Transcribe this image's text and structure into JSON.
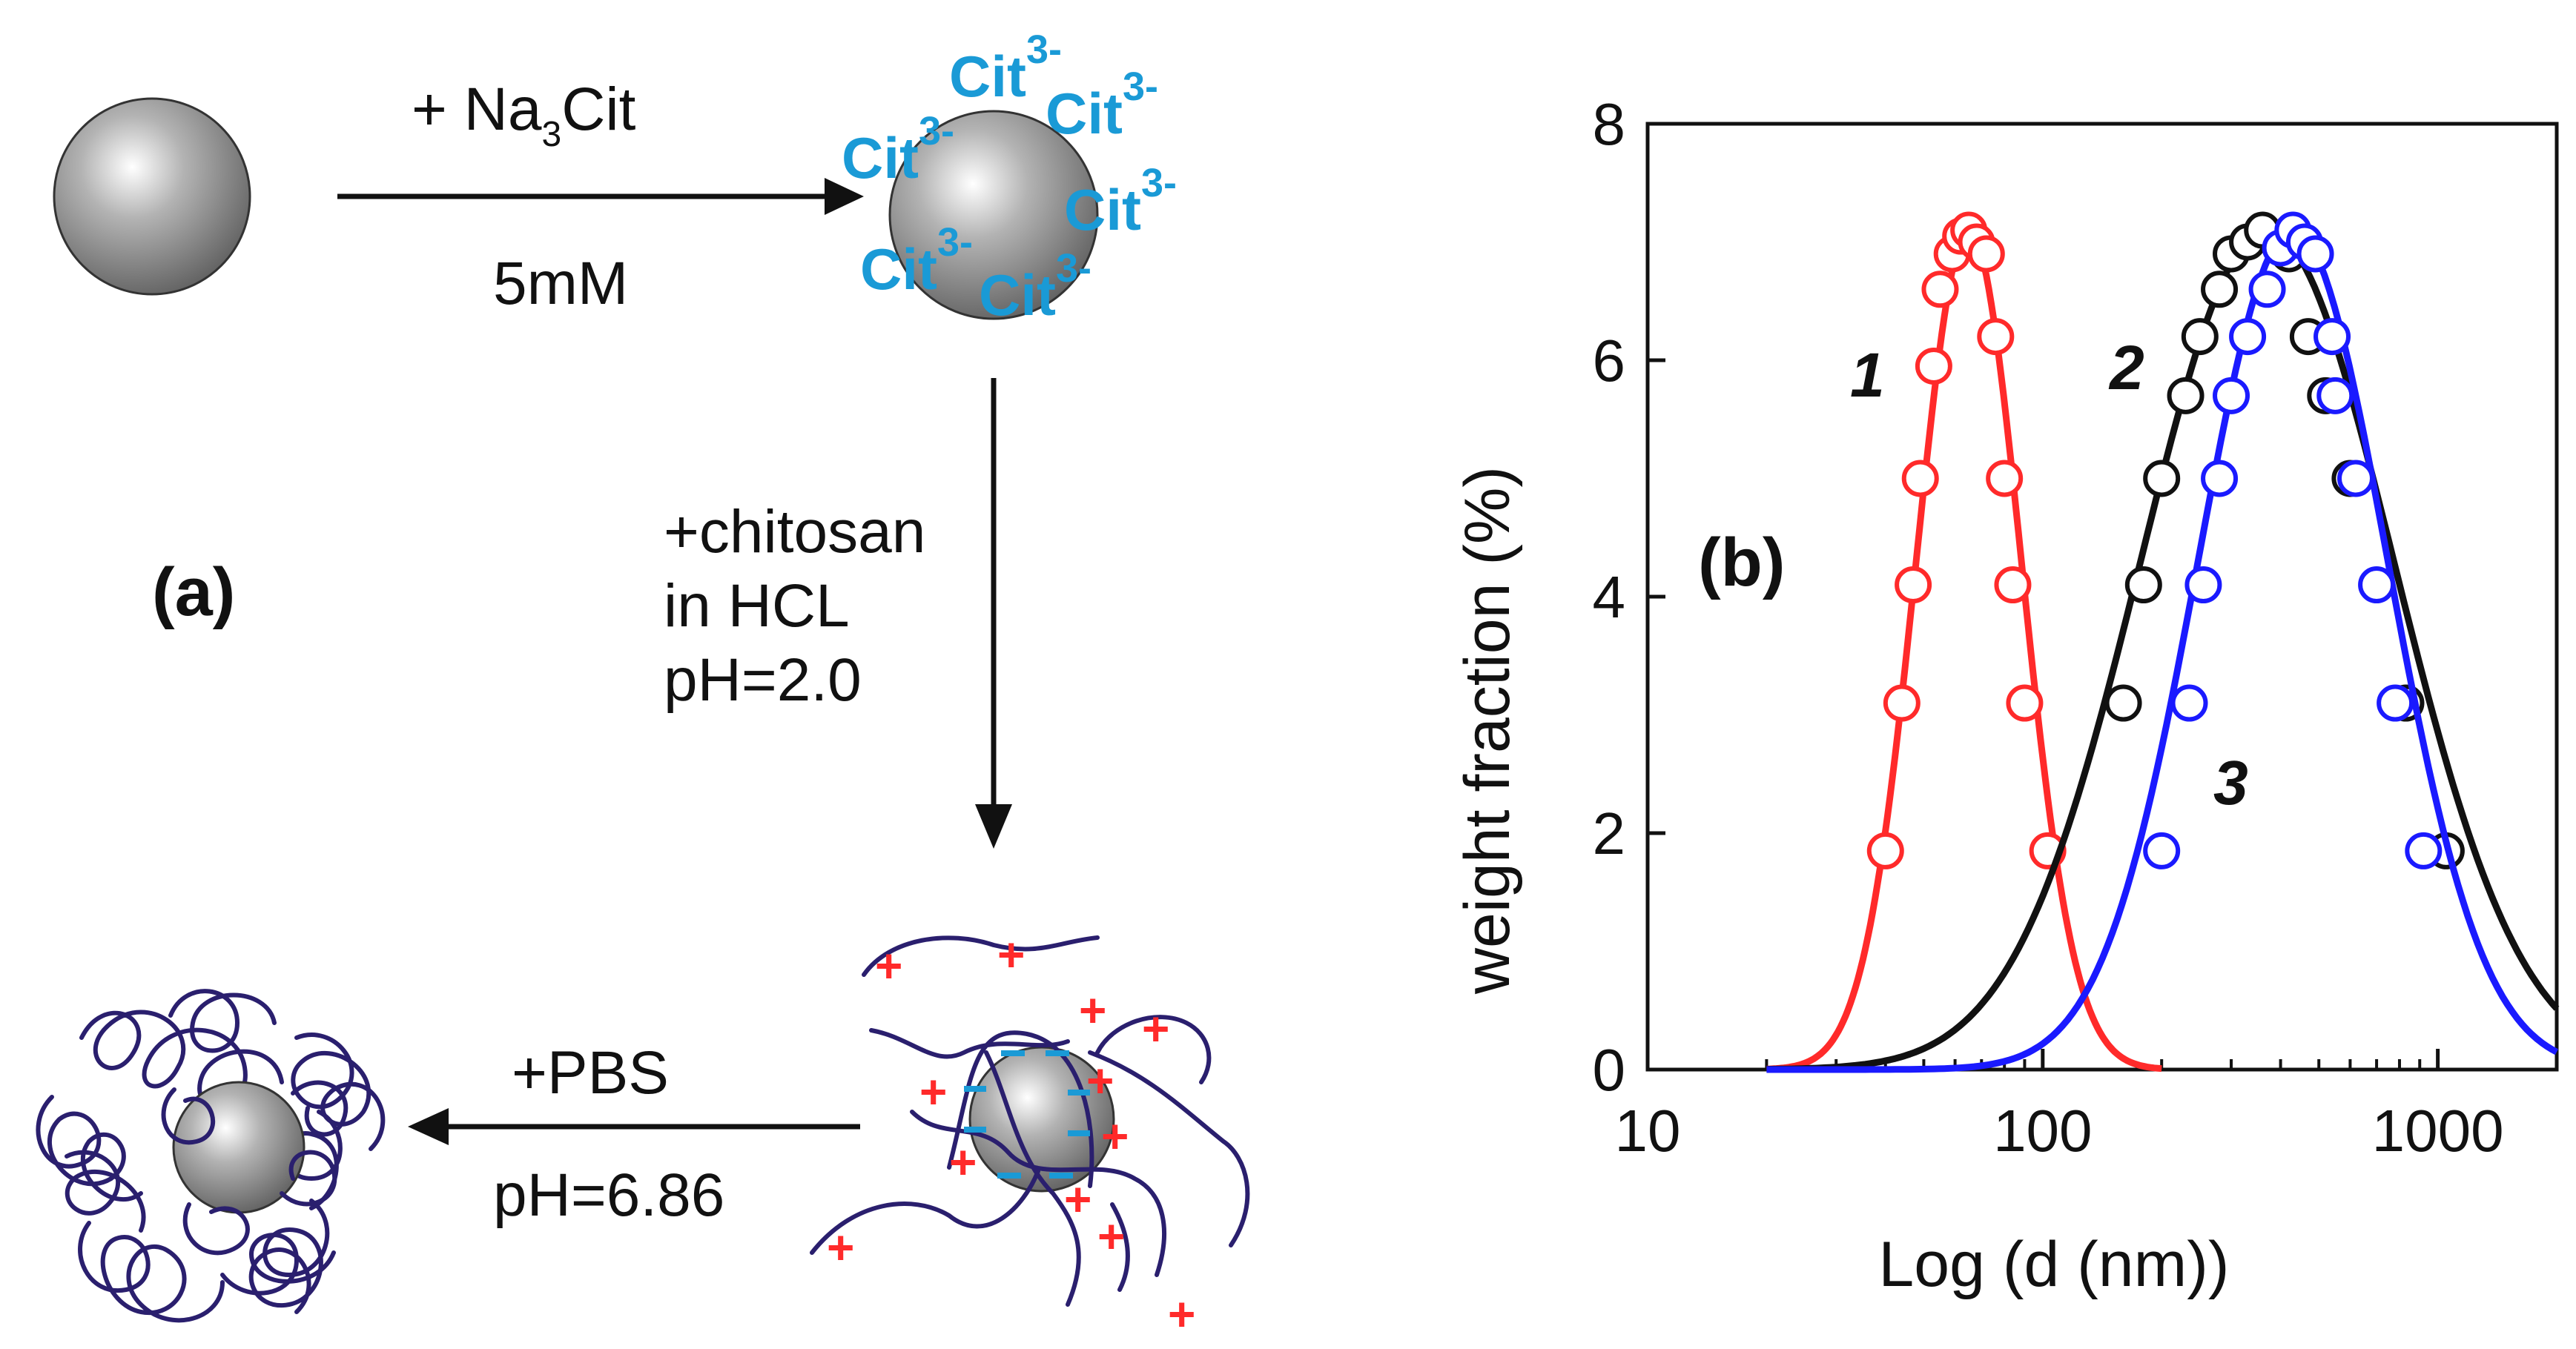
{
  "panel_a": {
    "label": "(a)",
    "step1": {
      "reagent_prefix": "+ Na",
      "reagent_sub": "3",
      "reagent_suffix": "Cit",
      "condition": "5mM"
    },
    "citrate": {
      "ion": "Cit",
      "charge": "3-"
    },
    "step2": {
      "line1": "+chitosan",
      "line2": "in HCL",
      "line3": "pH=2.0"
    },
    "step3": {
      "reagent": "+PBS",
      "condition": "pH=6.86"
    },
    "plus_sign": "+",
    "minus_sign": "–"
  },
  "chart_data": {
    "type": "line",
    "panel_label": "(b)",
    "xlabel": "Log (d (nm))",
    "ylabel": "weight fraction (%)",
    "xscale": "log",
    "xlim": [
      10,
      2000
    ],
    "ylim": [
      0,
      8
    ],
    "xticks": [
      10,
      100,
      1000
    ],
    "xtick_labels": [
      "10",
      "100",
      "1000"
    ],
    "yticks": [
      0,
      2,
      4,
      6,
      8
    ],
    "ytick_labels": [
      "0",
      "2",
      "4",
      "6",
      "8"
    ],
    "series": [
      {
        "name": "1",
        "color": "#ff2a2a",
        "peak": 65,
        "sigma": 0.133,
        "amp": 7.1,
        "curve_x": [
          20,
          25,
          30,
          35,
          40,
          45,
          50,
          55,
          60,
          65,
          70,
          75,
          80,
          85,
          90,
          95,
          100,
          110,
          120,
          130,
          150,
          175,
          200
        ],
        "markers": [
          {
            "x": 40,
            "y": 1.85
          },
          {
            "x": 44,
            "y": 3.1
          },
          {
            "x": 47,
            "y": 4.1
          },
          {
            "x": 49,
            "y": 5.0
          },
          {
            "x": 53,
            "y": 5.95
          },
          {
            "x": 55,
            "y": 6.6
          },
          {
            "x": 59,
            "y": 6.9
          },
          {
            "x": 62,
            "y": 7.05
          },
          {
            "x": 65,
            "y": 7.1
          },
          {
            "x": 68,
            "y": 7.0
          },
          {
            "x": 72,
            "y": 6.9
          },
          {
            "x": 76,
            "y": 6.2
          },
          {
            "x": 80,
            "y": 5.0
          },
          {
            "x": 84,
            "y": 4.1
          },
          {
            "x": 90,
            "y": 3.1
          },
          {
            "x": 103,
            "y": 1.85
          }
        ]
      },
      {
        "name": "2",
        "color": "#111111",
        "peak": 370,
        "sigma": 0.32,
        "amp": 7.1,
        "curve_x": [
          20,
          30,
          40,
          50,
          60,
          80,
          100,
          130,
          160,
          200,
          250,
          300,
          350,
          400,
          500,
          600,
          700,
          800,
          1000,
          1200,
          1500,
          2000
        ],
        "markers": [
          {
            "x": 160,
            "y": 3.1
          },
          {
            "x": 180,
            "y": 4.1
          },
          {
            "x": 200,
            "y": 5.0
          },
          {
            "x": 230,
            "y": 5.7
          },
          {
            "x": 250,
            "y": 6.2
          },
          {
            "x": 280,
            "y": 6.6
          },
          {
            "x": 300,
            "y": 6.9
          },
          {
            "x": 330,
            "y": 7.0
          },
          {
            "x": 360,
            "y": 7.1
          },
          {
            "x": 420,
            "y": 6.9
          },
          {
            "x": 470,
            "y": 6.2
          },
          {
            "x": 520,
            "y": 5.7
          },
          {
            "x": 600,
            "y": 5.0
          },
          {
            "x": 830,
            "y": 3.1
          },
          {
            "x": 1050,
            "y": 1.85
          }
        ]
      },
      {
        "name": "3",
        "color": "#1a1aff",
        "peak": 430,
        "sigma": 0.24,
        "amp": 7.1,
        "curve_x": [
          20,
          60,
          100,
          130,
          160,
          200,
          250,
          300,
          350,
          400,
          430,
          500,
          600,
          700,
          800,
          1000,
          1200,
          1500,
          2000
        ],
        "markers": [
          {
            "x": 200,
            "y": 1.85
          },
          {
            "x": 235,
            "y": 3.1
          },
          {
            "x": 255,
            "y": 4.1
          },
          {
            "x": 280,
            "y": 5.0
          },
          {
            "x": 300,
            "y": 5.7
          },
          {
            "x": 330,
            "y": 6.2
          },
          {
            "x": 370,
            "y": 6.6
          },
          {
            "x": 400,
            "y": 6.95
          },
          {
            "x": 430,
            "y": 7.1
          },
          {
            "x": 460,
            "y": 7.0
          },
          {
            "x": 490,
            "y": 6.9
          },
          {
            "x": 540,
            "y": 6.2
          },
          {
            "x": 550,
            "y": 5.7
          },
          {
            "x": 620,
            "y": 5.0
          },
          {
            "x": 700,
            "y": 4.1
          },
          {
            "x": 780,
            "y": 3.1
          },
          {
            "x": 920,
            "y": 1.85
          }
        ]
      }
    ]
  }
}
